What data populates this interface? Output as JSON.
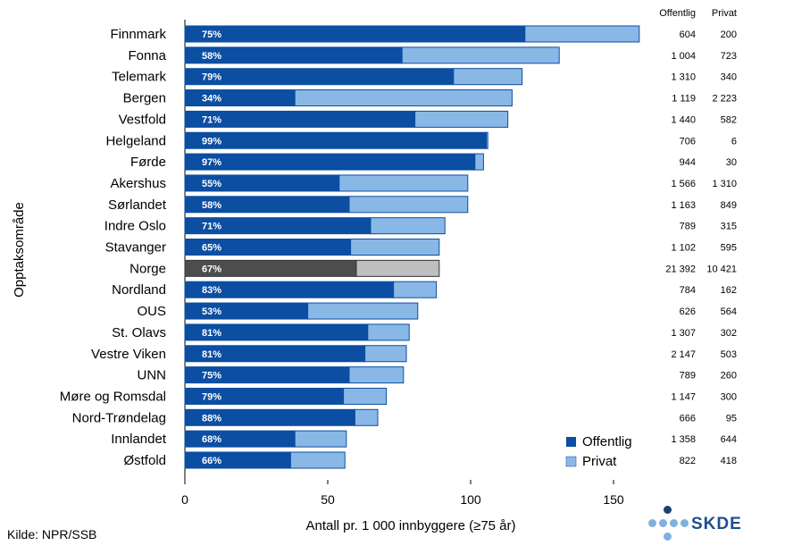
{
  "chart_data": {
    "type": "bar",
    "orientation": "horizontal",
    "stacked": true,
    "ylabel": "Opptaksområde",
    "xlabel": "Antall pr. 1 000 innbyggere (≥75 år)",
    "xlim": [
      0,
      190
    ],
    "xticks": [
      0,
      50,
      100,
      150
    ],
    "column_headers": [
      "Offentlig",
      "Privat"
    ],
    "legend": [
      "Offentlig",
      "Privat"
    ],
    "legend_position": "bottom-right",
    "colors": {
      "offentlig": "#0b4ea2",
      "privat": "#8ab8e6",
      "norge_offentlig": "#4d4d4d",
      "norge_privat": "#bfbfbf",
      "border": "#0b4ea2"
    },
    "categories": [
      "Finnmark",
      "Fonna",
      "Telemark",
      "Bergen",
      "Vestfold",
      "Helgeland",
      "Førde",
      "Akershus",
      "Sørlandet",
      "Indre Oslo",
      "Stavanger",
      "Norge",
      "Nordland",
      "OUS",
      "St. Olavs",
      "Vestre Viken",
      "UNN",
      "Møre og Romsdal",
      "Nord-Trøndelag",
      "Innlandet",
      "Østfold"
    ],
    "highlight": "Norge",
    "series": [
      {
        "name": "Offentlig",
        "values": [
          119,
          76,
          94,
          38.5,
          80.5,
          105.5,
          101.5,
          54,
          57.5,
          65,
          58,
          60,
          73,
          43,
          64,
          63,
          57.5,
          55.5,
          59.5,
          38.5,
          37
        ]
      },
      {
        "name": "Privat",
        "values": [
          40,
          55,
          24,
          76,
          32.5,
          0.5,
          3,
          45,
          41.5,
          26,
          31,
          29,
          15,
          38.5,
          14.5,
          14.5,
          19,
          15,
          8,
          18,
          19
        ]
      }
    ],
    "pct_labels": [
      "75%",
      "58%",
      "79%",
      "34%",
      "71%",
      "99%",
      "97%",
      "55%",
      "58%",
      "71%",
      "65%",
      "67%",
      "83%",
      "53%",
      "81%",
      "81%",
      "75%",
      "79%",
      "88%",
      "68%",
      "66%"
    ],
    "offentlig_counts": [
      "604",
      "1 004",
      "1 310",
      "1 119",
      "1 440",
      "706",
      "944",
      "1 566",
      "1 163",
      "789",
      "1 102",
      "21 392",
      "784",
      "626",
      "1 307",
      "2 147",
      "789",
      "1 147",
      "666",
      "1 358",
      "822"
    ],
    "privat_counts": [
      "200",
      "723",
      "340",
      "2 223",
      "582",
      "6",
      "30",
      "1 310",
      "849",
      "315",
      "595",
      "10 421",
      "162",
      "564",
      "302",
      "503",
      "260",
      "300",
      "95",
      "644",
      "418"
    ]
  },
  "source": "Kilde: NPR/SSB",
  "logo_text": "SKDE"
}
